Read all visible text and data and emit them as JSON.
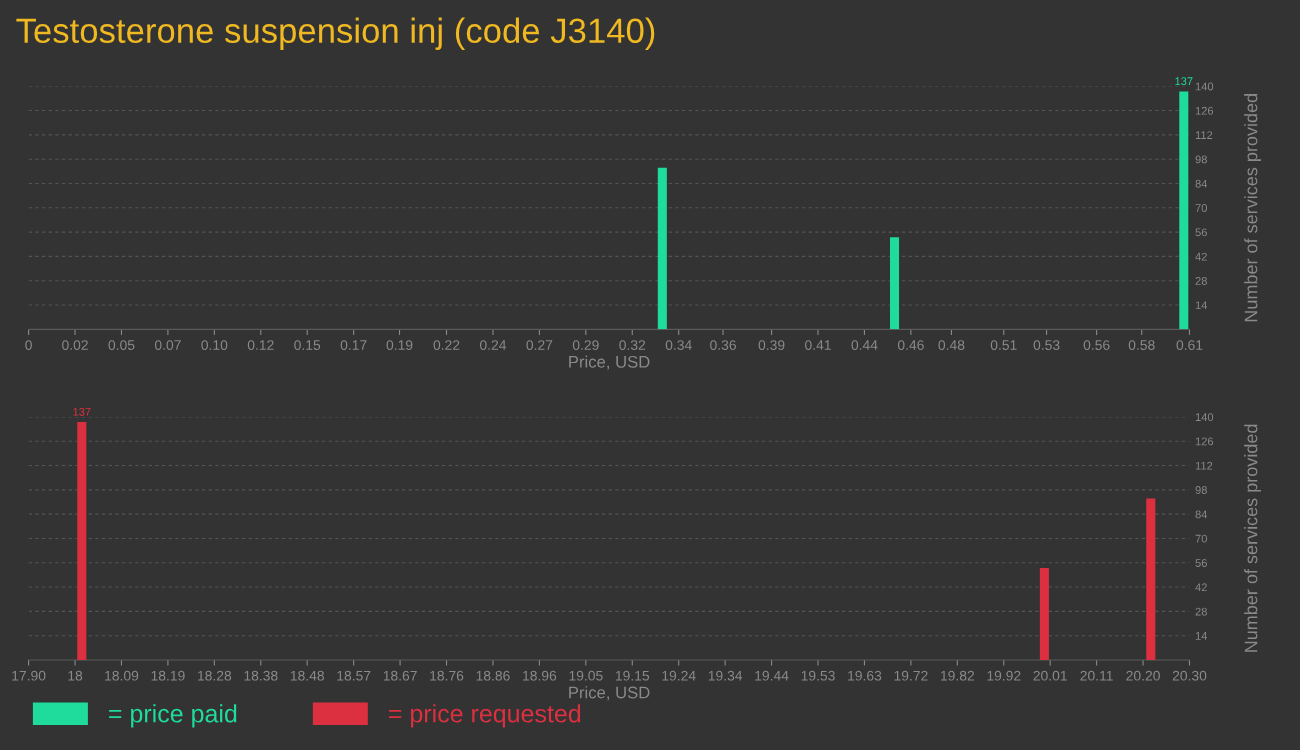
{
  "chart_data": [
    {
      "type": "bar",
      "title": "Testosterone suspension inj (code J3140)",
      "xlabel": "Price, USD",
      "ylabel": "Number of services provided",
      "x": [
        0.333,
        0.455,
        0.607
      ],
      "series": [
        {
          "name": "= price paid",
          "color": "#1fdb9c",
          "values": [
            93,
            53,
            137
          ],
          "value_labels": [
            null,
            null,
            "137"
          ]
        }
      ],
      "xlim": [
        0,
        0.61
      ],
      "xticks": [
        {
          "value": 0,
          "label": "0"
        },
        {
          "value": 0.0244,
          "label": "0.02"
        },
        {
          "value": 0.0488,
          "label": "0.05"
        },
        {
          "value": 0.0732,
          "label": "0.07"
        },
        {
          "value": 0.0976,
          "label": "0.10"
        },
        {
          "value": 0.122,
          "label": "0.12"
        },
        {
          "value": 0.1464,
          "label": "0.15"
        },
        {
          "value": 0.1708,
          "label": "0.17"
        },
        {
          "value": 0.1949,
          "label": "0.19"
        },
        {
          "value": 0.2196,
          "label": "0.22"
        },
        {
          "value": 0.244,
          "label": "0.24"
        },
        {
          "value": 0.2684,
          "label": "0.27"
        },
        {
          "value": 0.2928,
          "label": "0.29"
        },
        {
          "value": 0.3172,
          "label": "0.32"
        },
        {
          "value": 0.3416,
          "label": "0.34"
        },
        {
          "value": 0.3649,
          "label": "0.36"
        },
        {
          "value": 0.3904,
          "label": "0.39"
        },
        {
          "value": 0.4148,
          "label": "0.41"
        },
        {
          "value": 0.4392,
          "label": "0.44"
        },
        {
          "value": 0.4636,
          "label": "0.46"
        },
        {
          "value": 0.4849,
          "label": "0.48"
        },
        {
          "value": 0.5124,
          "label": "0.51"
        },
        {
          "value": 0.5349,
          "label": "0.53"
        },
        {
          "value": 0.5612,
          "label": "0.56"
        },
        {
          "value": 0.5849,
          "label": "0.58"
        },
        {
          "value": 0.61,
          "label": "0.61"
        }
      ],
      "ylim": [
        0,
        140
      ],
      "yticks": [
        14,
        28,
        42,
        56,
        70,
        84,
        98,
        112,
        126,
        140
      ],
      "grid": "y",
      "legend": "bottom left"
    },
    {
      "type": "bar",
      "xlabel": "Price, USD",
      "ylabel": "Number of services provided",
      "x": [
        18.01,
        20.0,
        20.22
      ],
      "series": [
        {
          "name": "= price requested",
          "color": "#dc3040",
          "values": [
            137,
            53,
            93
          ],
          "value_labels": [
            "137",
            null,
            null
          ]
        }
      ],
      "xlim": [
        17.9,
        20.3
      ],
      "xticks": [
        {
          "value": 17.9,
          "label": "17.90"
        },
        {
          "value": 17.996,
          "label": "18"
        },
        {
          "value": 18.092,
          "label": "18.09"
        },
        {
          "value": 18.188,
          "label": "18.19"
        },
        {
          "value": 18.284,
          "label": "18.28"
        },
        {
          "value": 18.38,
          "label": "18.38"
        },
        {
          "value": 18.476,
          "label": "18.48"
        },
        {
          "value": 18.572,
          "label": "18.57"
        },
        {
          "value": 18.668,
          "label": "18.67"
        },
        {
          "value": 18.764,
          "label": "18.76"
        },
        {
          "value": 18.86,
          "label": "18.86"
        },
        {
          "value": 18.956,
          "label": "18.96"
        },
        {
          "value": 19.052,
          "label": "19.05"
        },
        {
          "value": 19.148,
          "label": "19.15"
        },
        {
          "value": 19.244,
          "label": "19.24"
        },
        {
          "value": 19.34,
          "label": "19.34"
        },
        {
          "value": 19.436,
          "label": "19.44"
        },
        {
          "value": 19.532,
          "label": "19.53"
        },
        {
          "value": 19.628,
          "label": "19.63"
        },
        {
          "value": 19.724,
          "label": "19.72"
        },
        {
          "value": 19.82,
          "label": "19.82"
        },
        {
          "value": 19.916,
          "label": "19.92"
        },
        {
          "value": 20.012,
          "label": "20.01"
        },
        {
          "value": 20.108,
          "label": "20.11"
        },
        {
          "value": 20.204,
          "label": "20.20"
        },
        {
          "value": 20.3,
          "label": "20.30"
        }
      ],
      "ylim": [
        0,
        140
      ],
      "yticks": [
        14,
        28,
        42,
        56,
        70,
        84,
        98,
        112,
        126,
        140
      ],
      "grid": "y",
      "legend": "bottom left"
    }
  ]
}
